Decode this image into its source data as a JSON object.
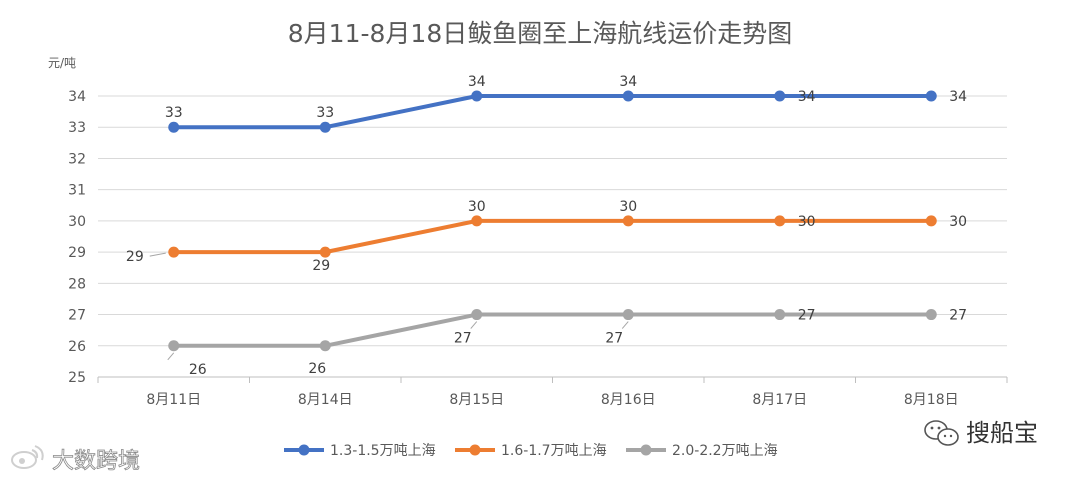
{
  "chart_data": {
    "type": "line",
    "title": "8月11-8月18日鲅鱼圈至上海航线运价走势图",
    "yunit": "元/吨",
    "categories": [
      "8月11日",
      "8月14日",
      "8月15日",
      "8月16日",
      "8月17日",
      "8月18日"
    ],
    "ylim": [
      25,
      34
    ],
    "yticks": [
      25,
      26,
      27,
      28,
      29,
      30,
      31,
      32,
      33,
      34
    ],
    "grid": true,
    "legend_position": "bottom",
    "series": [
      {
        "name": "1.3-1.5万吨上海",
        "color": "#4472c4",
        "values": [
          33,
          33,
          34,
          34,
          34,
          34
        ]
      },
      {
        "name": "1.6-1.7万吨上海",
        "color": "#ed7d31",
        "values": [
          29,
          29,
          30,
          30,
          30,
          30
        ]
      },
      {
        "name": "2.0-2.2万吨上海",
        "color": "#a5a5a5",
        "values": [
          26,
          26,
          27,
          27,
          27,
          27
        ]
      }
    ]
  },
  "watermarks": {
    "left": "大数跨境",
    "right": "搜船宝"
  }
}
